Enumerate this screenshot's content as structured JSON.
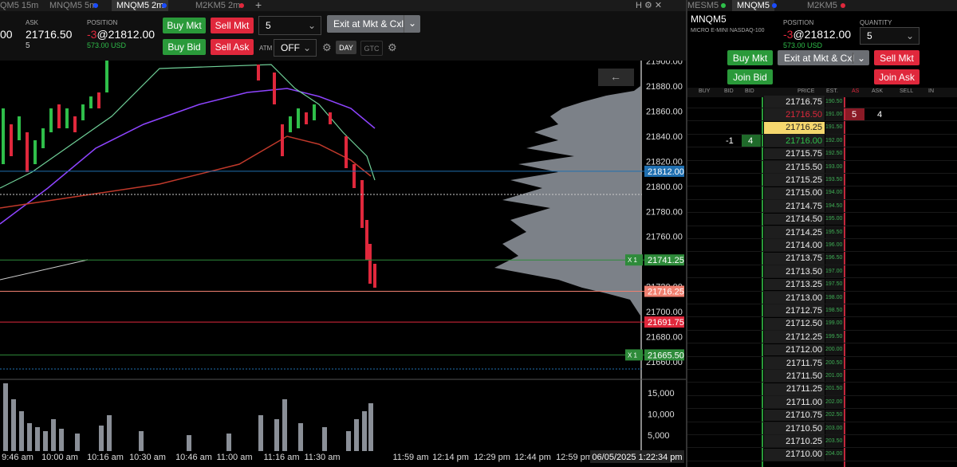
{
  "left_tabs": [
    "QM5 15m",
    "MNQM5 5m",
    "MNQM5 2m",
    "M2KM5 2m"
  ],
  "order_bar": {
    "left_price": "00",
    "ask_label": "ASK",
    "ask": "21716.50",
    "ask_size": "5",
    "position_label": "POSITION",
    "position_qty": "-3",
    "position_price": "@21812.00",
    "pnl": "573.00 USD",
    "buy_mkt": "Buy Mkt",
    "sell_mkt": "Sell Mkt",
    "buy_bid": "Buy Bid",
    "sell_ask": "Sell Ask",
    "quantity": "5",
    "exit": "Exit at Mkt & Cxl",
    "atm_label": "ATM",
    "atm": "OFF",
    "tif_day": "DAY",
    "tif_gtc": "GTC"
  },
  "price_axis": [
    "21900.00",
    "21880.00",
    "21860.00",
    "21840.00",
    "21820.00",
    "21800.00",
    "21780.00",
    "21760.00",
    "21740.00",
    "21720.00",
    "21700.00",
    "21680.00",
    "21660.00"
  ],
  "price_markers": [
    {
      "label": "21812.00",
      "color": "#1f6fb0"
    },
    {
      "label": "21741.25",
      "color": "#2e8b3a",
      "qty": "X 1"
    },
    {
      "label": "21716.25",
      "color": "#f08070"
    },
    {
      "label": "21691.75",
      "color": "#e0283c"
    },
    {
      "label": "21665.50",
      "color": "#2e8b3a",
      "qty": "X 1"
    }
  ],
  "volume_axis": [
    "15,000",
    "10,000",
    "5,000"
  ],
  "time_axis": [
    "9:46 am",
    "10:00 am",
    "10:16 am",
    "10:30 am",
    "10:46 am",
    "11:00 am",
    "11:16 am",
    "11:30 am",
    "11:59 am",
    "12:14 pm",
    "12:29 pm",
    "12:44 pm",
    "12:59 pm"
  ],
  "timestamp": "06/05/2025 1:22:34 pm",
  "dom": {
    "tabs": [
      "MESM5",
      "MNQM5",
      "M2KM5"
    ],
    "symbol": "MNQM5",
    "description": "MICRO E-MINI NASDAQ-100",
    "position_label": "POSITION",
    "position_qty": "-3",
    "position_price": "@21812.00",
    "pnl": "573.00 USD",
    "quantity_label": "QUANTITY",
    "quantity": "5",
    "buy_mkt": "Buy Mkt",
    "exit": "Exit at Mkt & Cxl",
    "sell_mkt": "Sell Mkt",
    "join_bid": "Join Bid",
    "join_ask": "Join Ask",
    "headers": [
      "BUY",
      "BID",
      "BID",
      "PRICE",
      "EST.",
      "AS",
      "ASK",
      "SELL",
      "IN"
    ],
    "rows": [
      {
        "price": "21716.75",
        "est": "190.50"
      },
      {
        "price": "21716.50",
        "est": "191.00",
        "ask": "5",
        "ask_size": "4"
      },
      {
        "price": "21716.25",
        "est": "191.50"
      },
      {
        "price": "21716.00",
        "est": "192.00",
        "bid_order": "-1",
        "bid": "4"
      },
      {
        "price": "21715.75",
        "est": "192.50"
      },
      {
        "price": "21715.50",
        "est": "193.00"
      },
      {
        "price": "21715.25",
        "est": "193.50"
      },
      {
        "price": "21715.00",
        "est": "194.00"
      },
      {
        "price": "21714.75",
        "est": "194.50"
      },
      {
        "price": "21714.50",
        "est": "195.00"
      },
      {
        "price": "21714.25",
        "est": "195.50"
      },
      {
        "price": "21714.00",
        "est": "196.00"
      },
      {
        "price": "21713.75",
        "est": "196.50"
      },
      {
        "price": "21713.50",
        "est": "197.00"
      },
      {
        "price": "21713.25",
        "est": "197.50"
      },
      {
        "price": "21713.00",
        "est": "198.00"
      },
      {
        "price": "21712.75",
        "est": "198.50"
      },
      {
        "price": "21712.50",
        "est": "199.00"
      },
      {
        "price": "21712.25",
        "est": "199.50"
      },
      {
        "price": "21712.00",
        "est": "200.00"
      },
      {
        "price": "21711.75",
        "est": "200.50"
      },
      {
        "price": "21711.50",
        "est": "201.00"
      },
      {
        "price": "21711.25",
        "est": "201.50"
      },
      {
        "price": "21711.00",
        "est": "202.00"
      },
      {
        "price": "21710.75",
        "est": "202.50"
      },
      {
        "price": "21710.50",
        "est": "203.00"
      },
      {
        "price": "21710.25",
        "est": "203.50"
      },
      {
        "price": "21710.00",
        "est": "204.00"
      }
    ]
  }
}
